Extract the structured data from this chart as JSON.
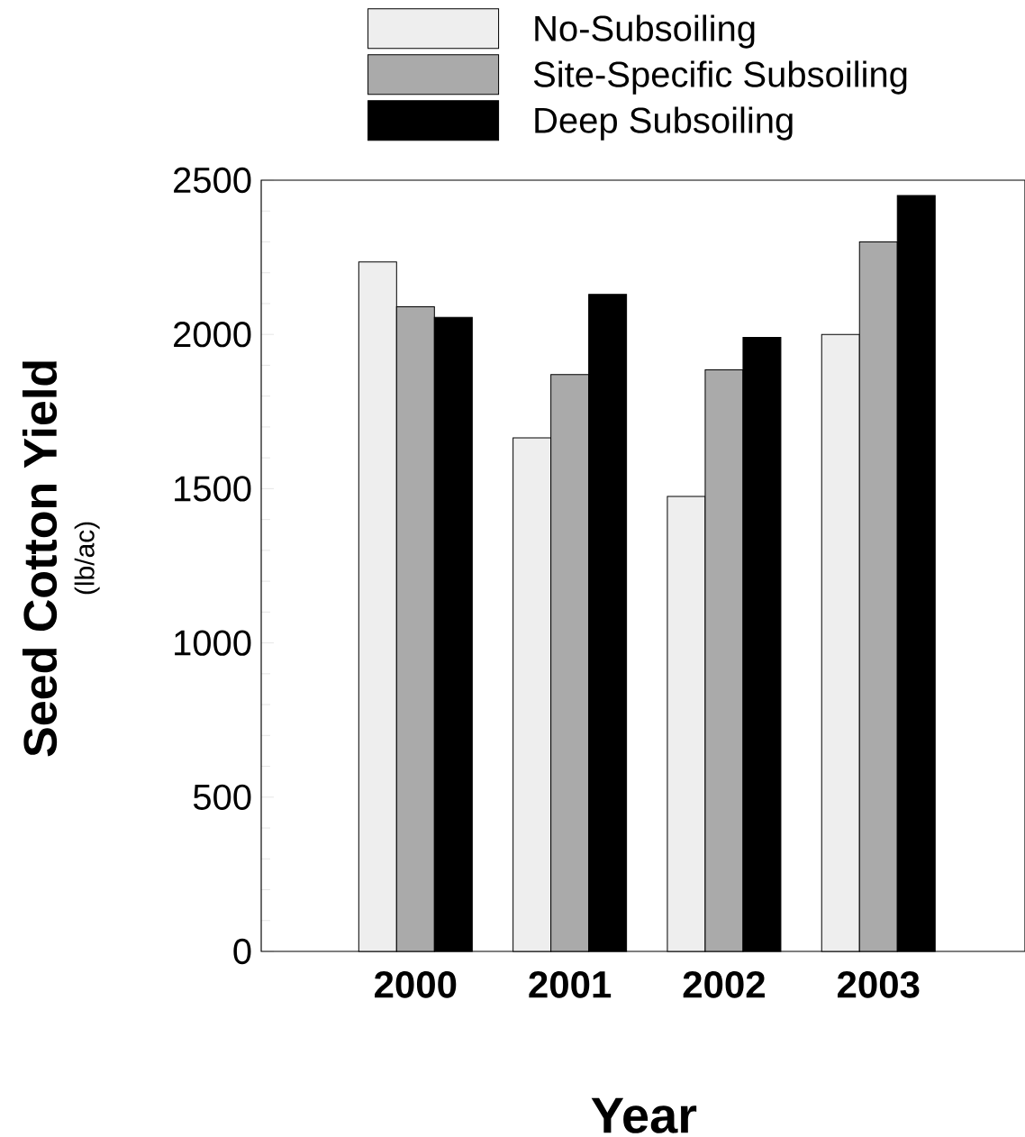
{
  "chart_data": {
    "type": "bar",
    "xlabel": "Year",
    "ylabel": "Seed Cotton Yield",
    "annotations": [
      "(lb/ac)"
    ],
    "categories": [
      "2000",
      "2001",
      "2002",
      "2003"
    ],
    "series": [
      {
        "name": "No-Subsoiling",
        "color": "#eeeeee",
        "values": [
          2235,
          1665,
          1475,
          2000
        ]
      },
      {
        "name": "Site-Specific Subsoiling",
        "color": "#aaaaaa",
        "values": [
          2090,
          1870,
          1885,
          2300
        ]
      },
      {
        "name": "Deep Subsoiling",
        "color": "#000000",
        "values": [
          2055,
          2130,
          1990,
          2450
        ]
      }
    ],
    "ylim": [
      0,
      2500
    ],
    "yticks": [
      0,
      500,
      1000,
      1500,
      2000,
      2500
    ],
    "legend": "top",
    "grid": false
  }
}
